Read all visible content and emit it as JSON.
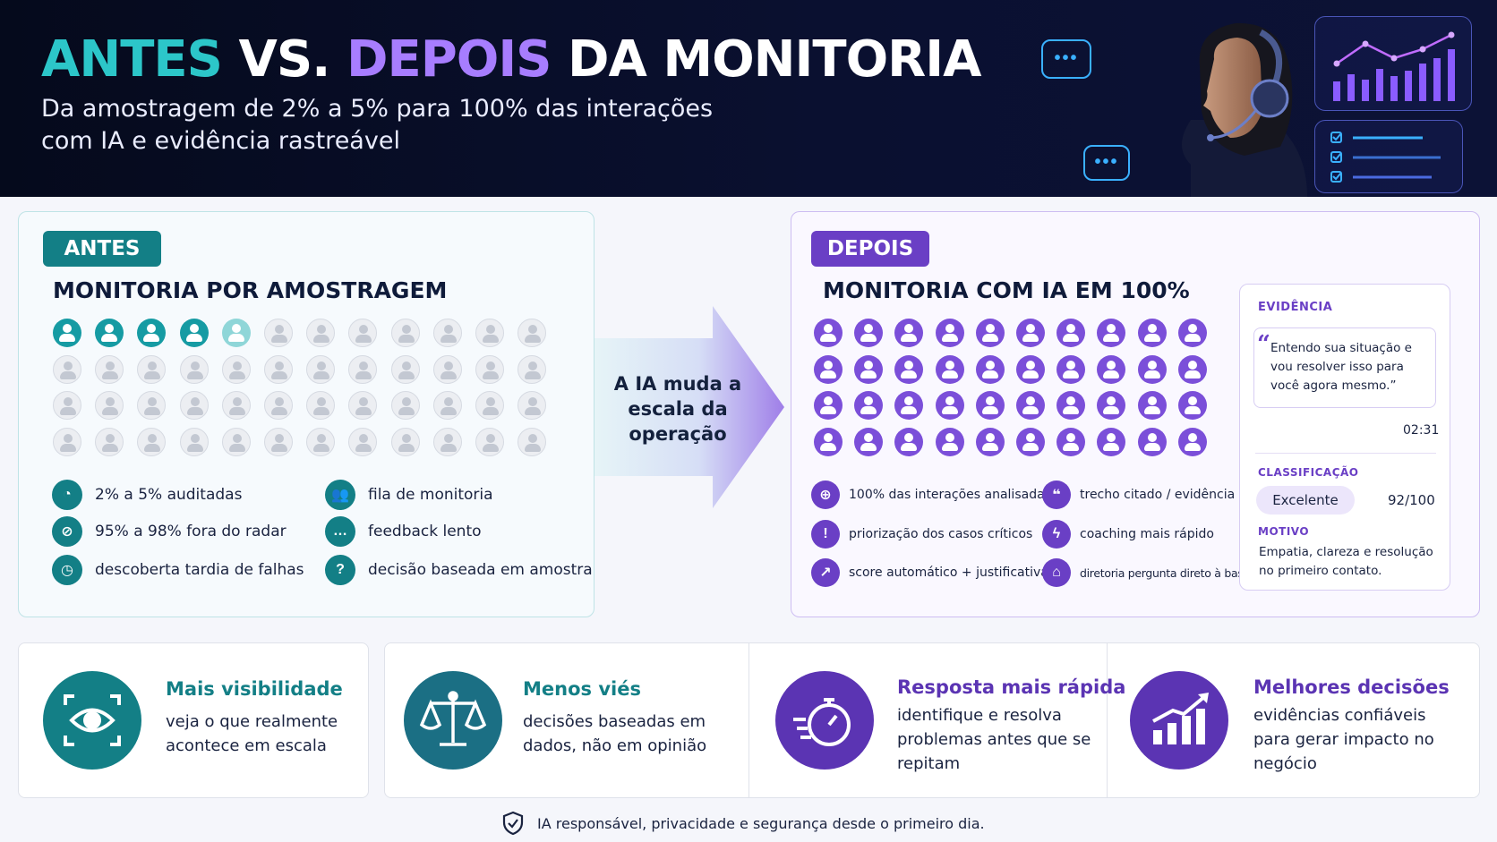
{
  "header": {
    "title_antes": "ANTES",
    "title_vs": "VS.",
    "title_depois": "DEPOIS",
    "title_rest": "DA MONITORIA",
    "subtitle": "Da amostragem de 2% a 5% para 100% das interações com IA e evidência rastreável",
    "bubble_dots": "•••",
    "colors": {
      "teal": "#2cc6c9",
      "purple": "#a77dff",
      "bg": "#050a1c"
    },
    "icons": [
      "chat-bubble-icon",
      "audio-waveform-icon",
      "headset-agent-illustration",
      "bar-chart-icon",
      "checklist-icon"
    ]
  },
  "antes": {
    "tag": "ANTES",
    "title": "MONITORIA POR  AMOSTRAGEM",
    "people": {
      "rows": 4,
      "cols": 12,
      "highlighted": 4,
      "partial": 1
    },
    "bullets": [
      {
        "icon": "pie-chart-icon",
        "text": "2% a 5% auditadas"
      },
      {
        "icon": "hidden-eye-icon",
        "text": "95% a 98% fora do radar"
      },
      {
        "icon": "clock-icon",
        "text": "descoberta tardia de falhas"
      },
      {
        "icon": "users-icon",
        "text": "fila de monitoria"
      },
      {
        "icon": "chat-icon",
        "text": "feedback lento"
      },
      {
        "icon": "question-icon",
        "text": "decisão baseada em amostra"
      }
    ],
    "color": "#137f86"
  },
  "transition": {
    "text": "A IA muda a escala da operação"
  },
  "depois": {
    "tag": "DEPOIS",
    "title": "MONITORIA COM IA EM 100%",
    "people": {
      "rows": 4,
      "cols": 10
    },
    "bullets": [
      {
        "icon": "target-icon",
        "text": "100% das interações analisadas"
      },
      {
        "icon": "warning-icon",
        "text": "priorização dos casos críticos"
      },
      {
        "icon": "trend-up-icon",
        "text": "score automático + justificativa"
      },
      {
        "icon": "quote-icon",
        "text": "trecho citado / evidência"
      },
      {
        "icon": "lightning-icon",
        "text": "coaching mais rápido"
      },
      {
        "icon": "bank-icon",
        "text": "diretoria pergunta direto à base"
      }
    ],
    "color": "#6a3fc5",
    "evidence": {
      "label": "EVIDÊNCIA",
      "quote": "Entendo sua situação e vou resolver isso para você agora mesmo.”",
      "time": "02:31",
      "classification_label": "CLASSIFICAÇÃO",
      "classification": "Excelente",
      "score": "92/100",
      "reason_label": "MOTIVO",
      "reason": "Empatia, clareza e resolução no primeiro contato."
    }
  },
  "benefits": [
    {
      "icon": "eye-scan-icon",
      "title": "Mais visibilidade",
      "desc": "veja o que realmente acontece em escala"
    },
    {
      "icon": "scales-icon",
      "title": "Menos viés",
      "desc": "decisões baseadas em dados, não em opinião"
    },
    {
      "icon": "stopwatch-icon",
      "title": "Resposta mais rápida",
      "desc": "identifique e resolva problemas antes que se repitam"
    },
    {
      "icon": "growth-chart-icon",
      "title": "Melhores decisões",
      "desc": "evidências confiáveis para gerar impacto no negócio"
    }
  ],
  "footer": {
    "icon": "shield-check-icon",
    "text": "IA responsável, privacidade e segurança desde o primeiro dia."
  }
}
